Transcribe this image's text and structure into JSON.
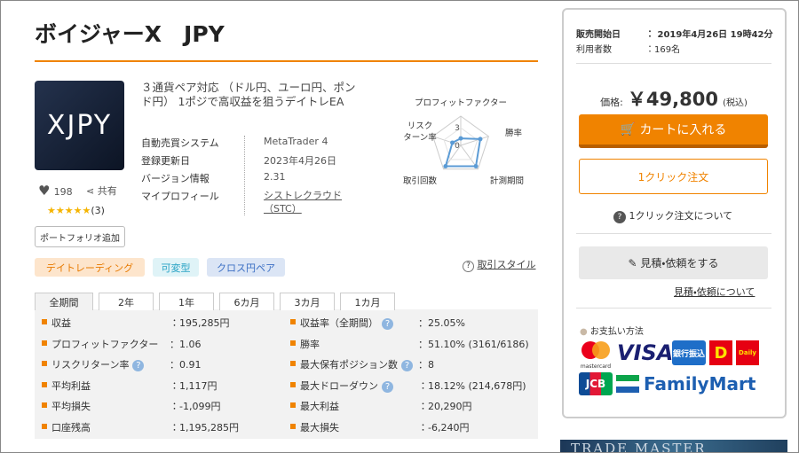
{
  "header": {
    "title": "ボイジャーX　JPY"
  },
  "product": {
    "logo_text": "XJPY",
    "description": "３通貨ペア対応 （ドル円、ユーロ円、ポンド円） 1ポジで高収益を狙うデイトレEA",
    "info": [
      {
        "label": "自動売買システム",
        "value": "MetaTrader 4"
      },
      {
        "label": "登録更新日",
        "value": "2023年4月26日"
      },
      {
        "label": "バージョン情報",
        "value": "2.31"
      },
      {
        "label": "マイプロフィール",
        "value": "シストレクラウド（STC）"
      }
    ],
    "likes": "198",
    "share": "共有",
    "stars": "★★★★★",
    "reviews": "(3)",
    "portfolio_button": "ポートフォリオ追加",
    "tags": [
      "デイトレーディング",
      "可変型",
      "クロス円ペア"
    ],
    "style_link": "取引スタイル"
  },
  "chart_data": {
    "type": "radar",
    "categories": [
      "プロフィットファクター",
      "勝率",
      "計測期間",
      "取引回数",
      "リスク\nターン率"
    ],
    "values": [
      1.2,
      3.5,
      4.4,
      4.4,
      1.5
    ],
    "rlim": [
      0,
      5
    ],
    "ticks": [
      0,
      3
    ],
    "color": "#5b9bd5"
  },
  "stats": {
    "tabs": [
      "全期間",
      "2年",
      "1年",
      "6カ月",
      "3カ月",
      "1カ月"
    ],
    "left": [
      {
        "label": "収益",
        "value": "：195,285円"
      },
      {
        "label": "プロフィットファクター",
        "value": "：1.06"
      },
      {
        "label": "リスクリターン率",
        "value": "：0.91"
      },
      {
        "label": "平均利益",
        "value": "：1,117円"
      },
      {
        "label": "平均損失",
        "value": "：-1,099円"
      },
      {
        "label": "口座残高",
        "value": "：1,195,285円"
      }
    ],
    "right": [
      {
        "label": "収益率（全期間）",
        "value": "：25.05%"
      },
      {
        "label": "勝率",
        "value": "：51.10% (3161/6186)"
      },
      {
        "label": "最大保有ポジション数",
        "value": "：8"
      },
      {
        "label": "最大ドローダウン",
        "value": "：18.12% (214,678円)"
      },
      {
        "label": "最大利益",
        "value": "：20,290円"
      },
      {
        "label": "最大損失",
        "value": "：-6,240円"
      }
    ]
  },
  "sidebar": {
    "sale_start_label": "販売開始日",
    "sale_start": "：  2019年4月26日 19時42分",
    "users_label": "利用者数",
    "users": "：169名",
    "price_label": "価格:",
    "price": "￥49,800",
    "tax": "(税込)",
    "cart_button": "カートに入れる",
    "one_click_button": "1クリック注文",
    "one_click_help": "1クリック注文について",
    "quote_button": "見積・依頼をする",
    "quote_help": "見積・依頼について",
    "payment_title": "お支払い方法",
    "payments": {
      "mastercard": "mastercard",
      "visa": "VISA",
      "bank": "銀行振込",
      "daily": "Daily",
      "jcb": "JCB",
      "familymart": "FamilyMart"
    }
  },
  "banner": {
    "text": "TRADE MASTER"
  }
}
